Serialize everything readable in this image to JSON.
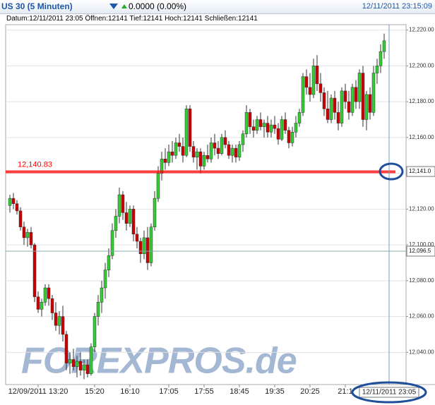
{
  "header": {
    "symbol": "US 30 (5 Minuten)",
    "change": "0.0000 (0.00%)",
    "time": "12/11/2011 23:15:09",
    "info": "Datum:12/11/2011 23:05 Öffnen:12141 Tief:12141 Hoch:12141 Schließen:12141"
  },
  "chart_data": {
    "type": "candlestick",
    "watermark": "FOREXPROS.de",
    "up_color": "#33cc33",
    "down_color": "#cc0000",
    "grid": true,
    "ylim": [
      12022,
      12223
    ],
    "yticks": [
      {
        "value": 12220,
        "label": "12,220.00"
      },
      {
        "value": 12200,
        "label": "12,200.00"
      },
      {
        "value": 12180,
        "label": "12,180.00"
      },
      {
        "value": 12160,
        "label": "12,160.00"
      },
      {
        "value": 12140,
        "label": "12,140.00"
      },
      {
        "value": 12120,
        "label": "12,120.00"
      },
      {
        "value": 12100,
        "label": "12,100.00"
      },
      {
        "value": 12080,
        "label": "12,080.00"
      },
      {
        "value": 12060,
        "label": "12,060.00"
      },
      {
        "value": 12040,
        "label": "12,040.00"
      }
    ],
    "xlim": [
      -1.2,
      112.2
    ],
    "xticks": [
      {
        "value": 8,
        "label": "12/09/2011 13:20"
      },
      {
        "value": 24,
        "label": "15:20"
      },
      {
        "value": 34,
        "label": "16:10"
      },
      {
        "value": 45,
        "label": "17:05"
      },
      {
        "value": 55,
        "label": "17:55"
      },
      {
        "value": 65,
        "label": "18:45"
      },
      {
        "value": 75,
        "label": "19:35"
      },
      {
        "value": 85,
        "label": "20:25"
      },
      {
        "value": 95,
        "label": "21:1"
      }
    ],
    "price_line": {
      "value": 12140.83,
      "label": "12,140.83",
      "color": "#ff0000"
    },
    "axis_markers": [
      {
        "value": 12141,
        "label": "12,141.0"
      },
      {
        "value": 12096.5,
        "label": "12,096.5"
      }
    ],
    "cursor": {
      "x": 107.4,
      "label": "12/11/2011 23:05"
    },
    "candles": [
      [
        12122,
        12128,
        12118,
        12126
      ],
      [
        12126,
        12129,
        12120,
        12123
      ],
      [
        12123,
        12125,
        12117,
        12119
      ],
      [
        12119,
        12121,
        12108,
        12110
      ],
      [
        12110,
        12113,
        12100,
        12104
      ],
      [
        12104,
        12109,
        12099,
        12107
      ],
      [
        12107,
        12110,
        12098,
        12100
      ],
      [
        12100,
        12101,
        12068,
        12071
      ],
      [
        12071,
        12074,
        12062,
        12064
      ],
      [
        12064,
        12070,
        12060,
        12068
      ],
      [
        12068,
        12078,
        12066,
        12076
      ],
      [
        12076,
        12078,
        12066,
        12070
      ],
      [
        12070,
        12072,
        12058,
        12062
      ],
      [
        12062,
        12068,
        12052,
        12055
      ],
      [
        12055,
        12063,
        12050,
        12060
      ],
      [
        12060,
        12066,
        12046,
        12050
      ],
      [
        12050,
        12052,
        12030,
        12034
      ],
      [
        12034,
        12040,
        12028,
        12036
      ],
      [
        12036,
        12042,
        12030,
        12032
      ],
      [
        12032,
        12038,
        12026,
        12035
      ],
      [
        12035,
        12040,
        12027,
        12030
      ],
      [
        12030,
        12036,
        12025,
        12033
      ],
      [
        12033,
        12036,
        12026,
        12028
      ],
      [
        12028,
        12045,
        12027,
        12043
      ],
      [
        12043,
        12062,
        12040,
        12060
      ],
      [
        12060,
        12072,
        12055,
        12068
      ],
      [
        12068,
        12080,
        12062,
        12076
      ],
      [
        12076,
        12090,
        12070,
        12086
      ],
      [
        12086,
        12098,
        12082,
        12094
      ],
      [
        12094,
        12112,
        12092,
        12108
      ],
      [
        12108,
        12120,
        12104,
        12116
      ],
      [
        12116,
        12132,
        12112,
        12128
      ],
      [
        12128,
        12130,
        12114,
        12118
      ],
      [
        12118,
        12124,
        12108,
        12112
      ],
      [
        12112,
        12122,
        12110,
        12120
      ],
      [
        12120,
        12122,
        12102,
        12106
      ],
      [
        12106,
        12110,
        12098,
        12102
      ],
      [
        12102,
        12104,
        12090,
        12095
      ],
      [
        12095,
        12108,
        12092,
        12104
      ],
      [
        12104,
        12110,
        12086,
        12090
      ],
      [
        12090,
        12112,
        12088,
        12110
      ],
      [
        12110,
        12130,
        12108,
        12126
      ],
      [
        12126,
        12144,
        12124,
        12140
      ],
      [
        12140,
        12152,
        12136,
        12148
      ],
      [
        12148,
        12154,
        12142,
        12146
      ],
      [
        12146,
        12156,
        12144,
        12152
      ],
      [
        12152,
        12158,
        12146,
        12150
      ],
      [
        12150,
        12160,
        12148,
        12157
      ],
      [
        12157,
        12162,
        12152,
        12155
      ],
      [
        12155,
        12160,
        12146,
        12150
      ],
      [
        12150,
        12178,
        12149,
        12176
      ],
      [
        12176,
        12178,
        12152,
        12155
      ],
      [
        12155,
        12158,
        12146,
        12149
      ],
      [
        12149,
        12154,
        12142,
        12152
      ],
      [
        12152,
        12154,
        12140,
        12144
      ],
      [
        12144,
        12152,
        12142,
        12150
      ],
      [
        12150,
        12156,
        12146,
        12148
      ],
      [
        12148,
        12160,
        12146,
        12157
      ],
      [
        12157,
        12162,
        12150,
        12154
      ],
      [
        12154,
        12158,
        12148,
        12151
      ],
      [
        12151,
        12162,
        12150,
        12160
      ],
      [
        12160,
        12164,
        12154,
        12156
      ],
      [
        12156,
        12158,
        12148,
        12150
      ],
      [
        12150,
        12156,
        12146,
        12154
      ],
      [
        12154,
        12156,
        12146,
        12149
      ],
      [
        12149,
        12158,
        12147,
        12156
      ],
      [
        12156,
        12164,
        12152,
        12162
      ],
      [
        12162,
        12178,
        12160,
        12174
      ],
      [
        12174,
        12176,
        12162,
        12166
      ],
      [
        12166,
        12170,
        12160,
        12164
      ],
      [
        12164,
        12172,
        12162,
        12170
      ],
      [
        12170,
        12174,
        12164,
        12166
      ],
      [
        12166,
        12170,
        12160,
        12168
      ],
      [
        12168,
        12172,
        12160,
        12163
      ],
      [
        12163,
        12170,
        12160,
        12167
      ],
      [
        12167,
        12172,
        12162,
        12165
      ],
      [
        12165,
        12168,
        12156,
        12159
      ],
      [
        12159,
        12172,
        12158,
        12170
      ],
      [
        12170,
        12174,
        12162,
        12164
      ],
      [
        12164,
        12166,
        12154,
        12157
      ],
      [
        12157,
        12166,
        12155,
        12163
      ],
      [
        12163,
        12172,
        12160,
        12168
      ],
      [
        12168,
        12176,
        12166,
        12174
      ],
      [
        12174,
        12196,
        12172,
        12194
      ],
      [
        12194,
        12198,
        12184,
        12188
      ],
      [
        12188,
        12196,
        12180,
        12184
      ],
      [
        12184,
        12204,
        12182,
        12200
      ],
      [
        12200,
        12206,
        12186,
        12190
      ],
      [
        12190,
        12196,
        12180,
        12185
      ],
      [
        12185,
        12188,
        12172,
        12176
      ],
      [
        12176,
        12186,
        12168,
        12170
      ],
      [
        12170,
        12184,
        12168,
        12182
      ],
      [
        12182,
        12186,
        12170,
        12174
      ],
      [
        12174,
        12180,
        12164,
        12168
      ],
      [
        12168,
        12188,
        12166,
        12186
      ],
      [
        12186,
        12190,
        12176,
        12180
      ],
      [
        12180,
        12186,
        12170,
        12174
      ],
      [
        12174,
        12190,
        12172,
        12188
      ],
      [
        12188,
        12192,
        12176,
        12180
      ],
      [
        12180,
        12198,
        12176,
        12196
      ],
      [
        12196,
        12200,
        12166,
        12170
      ],
      [
        12170,
        12186,
        12164,
        12184
      ],
      [
        12184,
        12188,
        12170,
        12174
      ],
      [
        12174,
        12200,
        12172,
        12196
      ],
      [
        12196,
        12204,
        12190,
        12200
      ],
      [
        12200,
        12212,
        12196,
        12208
      ],
      [
        12208,
        12218,
        12204,
        12214
      ]
    ]
  }
}
